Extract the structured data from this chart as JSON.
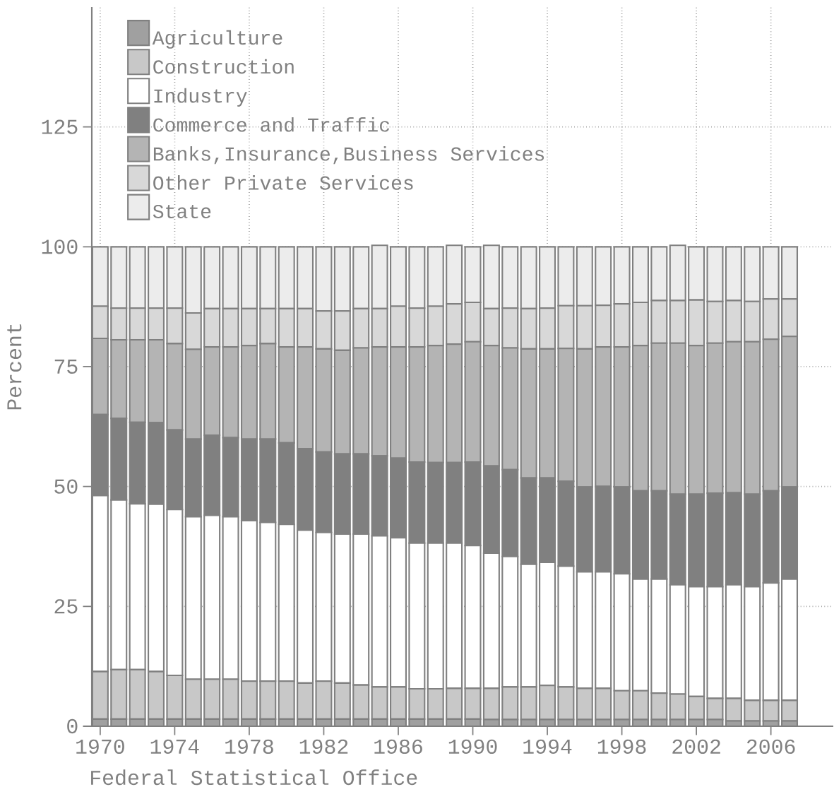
{
  "chart_data": {
    "type": "bar",
    "stacked": true,
    "ylabel": "Percent",
    "categories": [
      "1970",
      null,
      null,
      null,
      "1974",
      null,
      null,
      null,
      "1978",
      null,
      null,
      null,
      "1982",
      null,
      null,
      null,
      "1986",
      null,
      null,
      null,
      "1990",
      null,
      null,
      null,
      "1994",
      null,
      null,
      null,
      "1998",
      null,
      null,
      null,
      "2002",
      null,
      null,
      null,
      "2006",
      null
    ],
    "series": [
      {
        "name": "Agriculture",
        "color": "#a0a0a0",
        "values": [
          1.5,
          1.5,
          1.5,
          1.5,
          1.5,
          1.5,
          1.5,
          1.5,
          1.5,
          1.5,
          1.5,
          1.5,
          1.5,
          1.5,
          1.5,
          1.5,
          1.5,
          1.5,
          1.5,
          1.5,
          1.5,
          1.4,
          1.4,
          1.4,
          1.4,
          1.4,
          1.4,
          1.4,
          1.4,
          1.4,
          1.4,
          1.4,
          1.4,
          1.4,
          1.1,
          1.1,
          1.1,
          1.1
        ]
      },
      {
        "name": "Construction",
        "color": "#c8c8c8",
        "values": [
          9.9,
          10.3,
          10.3,
          9.9,
          9.1,
          8.3,
          8.3,
          8.3,
          7.9,
          7.9,
          7.9,
          7.5,
          7.9,
          7.5,
          7.1,
          6.7,
          6.7,
          6.3,
          6.3,
          6.4,
          6.4,
          6.5,
          6.8,
          6.8,
          7.1,
          6.8,
          6.5,
          6.5,
          6.0,
          6.0,
          5.5,
          5.3,
          4.8,
          4.4,
          4.7,
          4.3,
          4.3,
          4.3
        ]
      },
      {
        "name": "Industry",
        "color": "#ffffff",
        "values": [
          36.7,
          35.4,
          34.6,
          34.9,
          34.6,
          33.9,
          34.2,
          33.9,
          33.5,
          33.1,
          32.7,
          31.9,
          31.0,
          31.1,
          31.5,
          31.5,
          31.1,
          30.4,
          30.4,
          30.3,
          29.8,
          28.2,
          27.2,
          25.6,
          25.7,
          25.2,
          24.3,
          24.3,
          24.4,
          23.3,
          23.8,
          22.8,
          22.9,
          23.3,
          23.7,
          23.7,
          24.5,
          25.3
        ]
      },
      {
        "name": "Commerce and Traffic",
        "color": "#808080",
        "values": [
          16.9,
          17.0,
          17.0,
          17.0,
          16.6,
          16.2,
          16.7,
          16.5,
          17.0,
          17.4,
          17.0,
          17.0,
          16.8,
          16.7,
          16.7,
          16.7,
          16.6,
          16.9,
          16.8,
          16.8,
          17.4,
          18.2,
          18.1,
          18.0,
          17.6,
          17.7,
          17.7,
          17.8,
          18.1,
          18.4,
          18.4,
          18.9,
          19.3,
          19.5,
          19.2,
          19.3,
          19.2,
          19.2
        ]
      },
      {
        "name": "Banks,Insurance,Business Services",
        "color": "#b4b4b4",
        "values": [
          15.9,
          16.4,
          17.2,
          17.3,
          18.0,
          18.7,
          18.4,
          18.9,
          19.5,
          19.9,
          20.0,
          21.2,
          21.5,
          21.6,
          22.1,
          22.7,
          23.2,
          24.0,
          24.4,
          24.7,
          25.1,
          25.1,
          25.4,
          26.9,
          26.9,
          27.7,
          28.8,
          29.1,
          29.2,
          30.3,
          30.8,
          31.5,
          31.0,
          31.3,
          31.5,
          31.8,
          31.6,
          31.4
        ]
      },
      {
        "name": "Other Private Services",
        "color": "#d8d8d8",
        "values": [
          6.7,
          6.6,
          6.6,
          6.6,
          7.4,
          7.6,
          8.0,
          8.0,
          7.7,
          7.3,
          8.0,
          8.0,
          7.9,
          8.2,
          8.2,
          8.0,
          8.5,
          8.1,
          8.2,
          8.4,
          8.2,
          7.7,
          8.3,
          8.4,
          8.5,
          8.9,
          9.0,
          8.7,
          9.0,
          9.0,
          8.9,
          8.9,
          9.5,
          8.7,
          8.6,
          8.4,
          8.4,
          7.8
        ]
      },
      {
        "name": "State",
        "color": "#ececec",
        "values": [
          12.4,
          12.8,
          12.8,
          12.8,
          12.8,
          13.8,
          12.9,
          12.9,
          12.9,
          12.9,
          12.9,
          12.9,
          13.4,
          13.4,
          12.9,
          13.2,
          12.4,
          12.8,
          12.4,
          12.2,
          11.6,
          13.2,
          12.8,
          12.9,
          12.8,
          12.3,
          12.3,
          12.2,
          11.9,
          11.6,
          11.2,
          11.5,
          11.1,
          11.4,
          11.2,
          11.4,
          10.9,
          10.9
        ]
      }
    ],
    "ylim": [
      0,
      150
    ],
    "yticks": [
      0,
      25,
      50,
      75,
      100,
      125
    ],
    "grid": true,
    "legend": "top left",
    "annotations": [
      "Federal Statistical Office"
    ]
  }
}
